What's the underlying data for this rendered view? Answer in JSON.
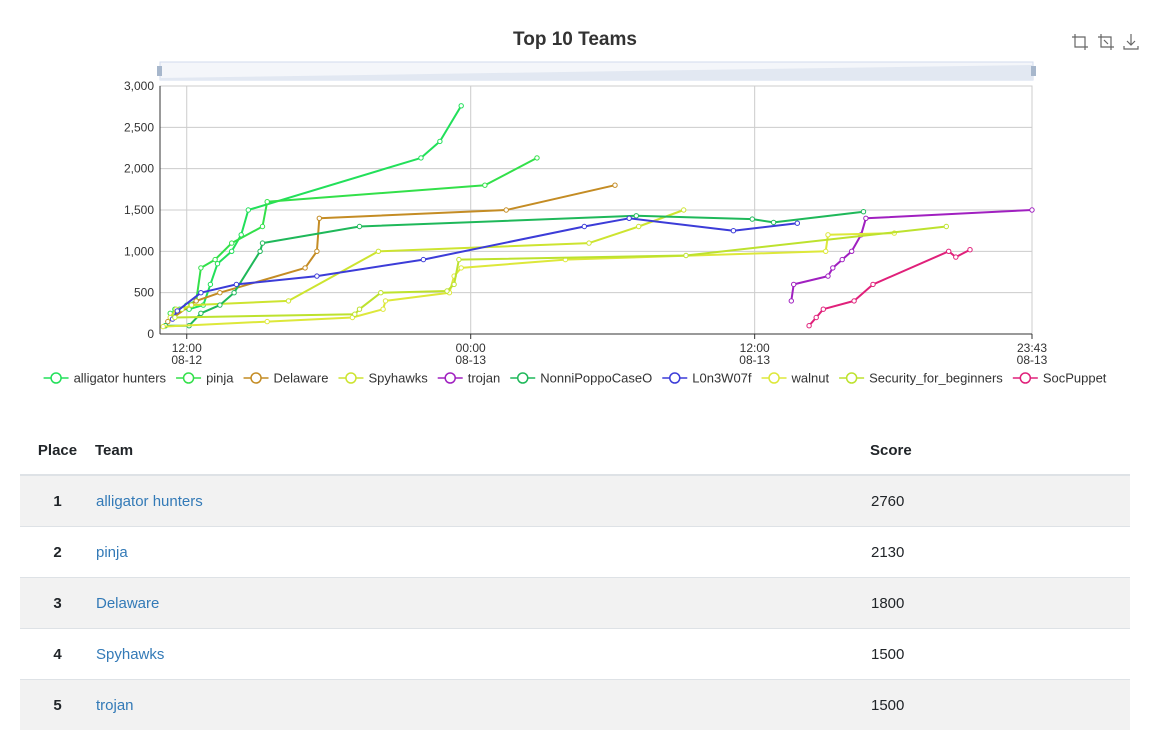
{
  "toolbar": {
    "icons": [
      "zoom-icon",
      "zoom-reset-icon",
      "download-icon"
    ]
  },
  "chart_data": {
    "type": "line",
    "title": "Top 10 Teams",
    "xlabel": "",
    "ylabel": "",
    "ylim": [
      0,
      3000
    ],
    "y_ticks": [
      "0",
      "500",
      "1,000",
      "1,500",
      "2,000",
      "2,500",
      "3,000"
    ],
    "x_range_hours": [
      10.87,
      47.72
    ],
    "x_ticks": [
      {
        "hour": 12,
        "time": "12:00",
        "date": "08-12"
      },
      {
        "hour": 24,
        "time": "00:00",
        "date": "08-13"
      },
      {
        "hour": 36,
        "time": "12:00",
        "date": "08-13"
      },
      {
        "hour": 47.72,
        "time": "23:43",
        "date": "08-13"
      }
    ],
    "grid": true,
    "legend": "bottom",
    "series": [
      {
        "name": "alligator hunters",
        "color": "#22e05a",
        "x": [
          11.1,
          11.35,
          11.5,
          12.1,
          12.7,
          13.0,
          13.3,
          13.9,
          14.3,
          14.6,
          21.9,
          22.7,
          23.6
        ],
        "y": [
          100,
          200,
          300,
          300,
          350,
          600,
          850,
          1000,
          1200,
          1500,
          2130,
          2330,
          2760
        ]
      },
      {
        "name": "pinja",
        "color": "#33e04a",
        "x": [
          11.3,
          11.7,
          12.0,
          12.4,
          12.6,
          13.2,
          13.9,
          15.2,
          15.4,
          24.6,
          26.8
        ],
        "y": [
          250,
          300,
          350,
          400,
          800,
          900,
          1100,
          1300,
          1600,
          1800,
          2130
        ]
      },
      {
        "name": "Delaware",
        "color": "#c48c24",
        "x": [
          11.2,
          12.4,
          13.4,
          17.0,
          17.5,
          17.6,
          25.5,
          30.1
        ],
        "y": [
          150,
          400,
          500,
          800,
          1000,
          1400,
          1500,
          1800
        ]
      },
      {
        "name": "Spyhawks",
        "color": "#cde430",
        "x": [
          11.3,
          11.55,
          11.8,
          12.2,
          16.3,
          20.1,
          29.0,
          31.1,
          33.0
        ],
        "y": [
          200,
          300,
          300,
          350,
          400,
          1000,
          1100,
          1300,
          1500
        ]
      },
      {
        "name": "trojan",
        "color": "#a020c0",
        "x": [
          37.55,
          37.65,
          39.1,
          39.3,
          39.7,
          40.1,
          40.5,
          40.7,
          47.72
        ],
        "y": [
          400,
          600,
          700,
          800,
          900,
          1000,
          1200,
          1400,
          1500
        ]
      },
      {
        "name": "NonniPoppoCaseO",
        "color": "#1fb85a",
        "x": [
          11.1,
          12.1,
          12.6,
          13.4,
          14.0,
          15.1,
          15.2,
          19.3,
          31.0,
          35.9,
          36.8,
          40.6
        ],
        "y": [
          100,
          100,
          250,
          350,
          500,
          1000,
          1100,
          1300,
          1430,
          1390,
          1350,
          1480
        ]
      },
      {
        "name": "L0n3W07f",
        "color": "#3c3cd8",
        "x": [
          11.4,
          11.6,
          12.6,
          14.1,
          17.5,
          22.0,
          28.8,
          30.7,
          35.1,
          37.8
        ],
        "y": [
          180,
          280,
          500,
          600,
          700,
          900,
          1300,
          1400,
          1250,
          1340
        ]
      },
      {
        "name": "walnut",
        "color": "#dde83a",
        "x": [
          11.0,
          15.4,
          19.0,
          20.3,
          20.4,
          23.1,
          23.3,
          23.6,
          28.0,
          39.0,
          39.1,
          41.9
        ],
        "y": [
          90,
          150,
          200,
          300,
          400,
          500,
          700,
          800,
          900,
          1000,
          1200,
          1220
        ]
      },
      {
        "name": "Security_for_beginners",
        "color": "#bde22e",
        "x": [
          11.5,
          19.1,
          19.3,
          20.2,
          23.0,
          23.3,
          23.5,
          33.1,
          44.1
        ],
        "y": [
          200,
          240,
          300,
          500,
          520,
          600,
          900,
          950,
          1300
        ]
      },
      {
        "name": "SocPuppet",
        "color": "#e0207a",
        "x": [
          38.3,
          38.6,
          38.9,
          40.2,
          41.0,
          44.2,
          44.5,
          45.1
        ],
        "y": [
          100,
          200,
          300,
          400,
          600,
          1000,
          930,
          1020
        ]
      }
    ]
  },
  "table": {
    "headers": {
      "place": "Place",
      "team": "Team",
      "score": "Score"
    },
    "rows": [
      {
        "place": "1",
        "team": "alligator hunters",
        "score": "2760"
      },
      {
        "place": "2",
        "team": "pinja",
        "score": "2130"
      },
      {
        "place": "3",
        "team": "Delaware",
        "score": "1800"
      },
      {
        "place": "4",
        "team": "Spyhawks",
        "score": "1500"
      },
      {
        "place": "5",
        "team": "trojan",
        "score": "1500"
      }
    ]
  }
}
